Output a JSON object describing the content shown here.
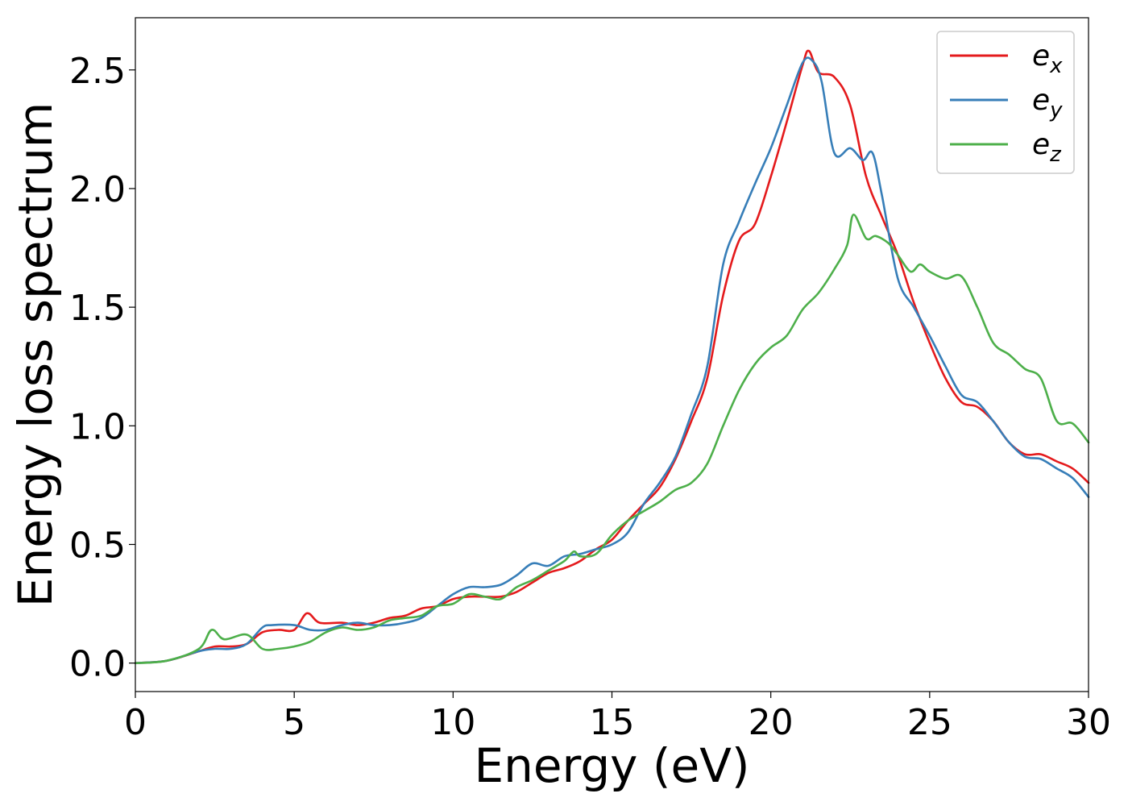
{
  "chart_data": {
    "type": "line",
    "title": "",
    "xlabel": "Energy (eV)",
    "ylabel": "Energy loss spectrum",
    "xlim": [
      0,
      30
    ],
    "ylim": [
      -0.12,
      2.72
    ],
    "xticks": [
      0,
      5,
      10,
      15,
      20,
      25,
      30
    ],
    "xtick_labels": [
      "0",
      "5",
      "10",
      "15",
      "20",
      "25",
      "30"
    ],
    "yticks": [
      0.0,
      0.5,
      1.0,
      1.5,
      2.0,
      2.5
    ],
    "ytick_labels": [
      "0.0",
      "0.5",
      "1.0",
      "1.5",
      "2.0",
      "2.5"
    ],
    "grid": false,
    "legend_position": "top-right",
    "series": [
      {
        "name": "e",
        "subscript": "x",
        "color": "#e41a1c",
        "x": [
          0,
          1,
          2,
          2.5,
          3,
          3.5,
          4,
          4.5,
          5,
          5.4,
          5.8,
          6.5,
          7,
          7.5,
          8,
          8.5,
          9,
          9.5,
          10,
          10.5,
          11,
          11.5,
          12,
          12.5,
          13,
          13.5,
          14,
          14.5,
          15,
          15.5,
          16,
          16.5,
          17,
          17.5,
          18,
          18.5,
          19,
          19.5,
          20,
          20.5,
          21,
          21.2,
          21.5,
          22,
          22.5,
          23,
          23.5,
          24,
          24.5,
          25,
          25.5,
          26,
          26.5,
          27,
          27.5,
          28,
          28.5,
          29,
          29.5,
          30
        ],
        "y": [
          0,
          0.01,
          0.05,
          0.07,
          0.07,
          0.08,
          0.13,
          0.14,
          0.14,
          0.21,
          0.17,
          0.17,
          0.16,
          0.17,
          0.19,
          0.2,
          0.23,
          0.24,
          0.27,
          0.28,
          0.28,
          0.28,
          0.3,
          0.34,
          0.38,
          0.4,
          0.43,
          0.48,
          0.52,
          0.6,
          0.67,
          0.74,
          0.86,
          1.02,
          1.2,
          1.55,
          1.78,
          1.85,
          2.05,
          2.28,
          2.52,
          2.58,
          2.49,
          2.47,
          2.35,
          2.05,
          1.88,
          1.72,
          1.52,
          1.35,
          1.2,
          1.1,
          1.08,
          1.02,
          0.93,
          0.88,
          0.88,
          0.85,
          0.82,
          0.76
        ]
      },
      {
        "name": "e",
        "subscript": "y",
        "color": "#377eb8",
        "x": [
          0,
          1,
          2,
          2.5,
          3,
          3.5,
          4,
          4.3,
          5,
          5.5,
          6,
          6.5,
          7,
          7.5,
          8,
          8.5,
          9,
          9.5,
          10,
          10.5,
          11,
          11.5,
          12,
          12.5,
          13,
          13.5,
          14,
          14.5,
          15,
          15.5,
          16,
          16.5,
          17,
          17.5,
          18,
          18.5,
          19,
          19.5,
          20,
          20.5,
          21,
          21.3,
          21.6,
          22,
          22.5,
          22.9,
          23.2,
          23.5,
          24,
          24.5,
          25,
          25.5,
          26,
          26.5,
          27,
          27.5,
          28,
          28.5,
          29,
          29.5,
          30
        ],
        "y": [
          0,
          0.01,
          0.05,
          0.06,
          0.06,
          0.08,
          0.15,
          0.16,
          0.16,
          0.14,
          0.14,
          0.16,
          0.17,
          0.16,
          0.16,
          0.17,
          0.19,
          0.24,
          0.29,
          0.32,
          0.32,
          0.33,
          0.37,
          0.42,
          0.41,
          0.45,
          0.46,
          0.48,
          0.5,
          0.55,
          0.67,
          0.76,
          0.87,
          1.05,
          1.25,
          1.68,
          1.86,
          2.02,
          2.17,
          2.35,
          2.53,
          2.54,
          2.45,
          2.15,
          2.17,
          2.12,
          2.15,
          1.97,
          1.62,
          1.5,
          1.38,
          1.25,
          1.13,
          1.1,
          1.02,
          0.93,
          0.87,
          0.86,
          0.82,
          0.78,
          0.7
        ]
      },
      {
        "name": "e",
        "subscript": "z",
        "color": "#4daf4a",
        "x": [
          0,
          1,
          2,
          2.4,
          2.8,
          3.5,
          4,
          4.5,
          5,
          5.5,
          6,
          6.5,
          7,
          7.5,
          8,
          8.5,
          9,
          9.5,
          10,
          10.5,
          11,
          11.5,
          12,
          12.5,
          13,
          13.5,
          13.8,
          14,
          14.5,
          15,
          15.5,
          16,
          16.5,
          17,
          17.5,
          18,
          18.5,
          19,
          19.5,
          20,
          20.5,
          21,
          21.5,
          22,
          22.4,
          22.6,
          23,
          23.3,
          23.7,
          24,
          24.4,
          24.7,
          25,
          25.5,
          26,
          26.5,
          27,
          27.5,
          28,
          28.5,
          29,
          29.5,
          30
        ],
        "y": [
          0,
          0.01,
          0.06,
          0.14,
          0.1,
          0.12,
          0.06,
          0.06,
          0.07,
          0.09,
          0.13,
          0.15,
          0.14,
          0.15,
          0.18,
          0.19,
          0.2,
          0.24,
          0.25,
          0.29,
          0.28,
          0.27,
          0.32,
          0.35,
          0.39,
          0.43,
          0.47,
          0.45,
          0.46,
          0.54,
          0.6,
          0.64,
          0.68,
          0.73,
          0.76,
          0.84,
          1.0,
          1.15,
          1.26,
          1.33,
          1.38,
          1.49,
          1.56,
          1.66,
          1.76,
          1.89,
          1.79,
          1.8,
          1.77,
          1.72,
          1.65,
          1.68,
          1.65,
          1.62,
          1.63,
          1.5,
          1.35,
          1.3,
          1.24,
          1.2,
          1.02,
          1.01,
          0.93
        ]
      }
    ]
  }
}
